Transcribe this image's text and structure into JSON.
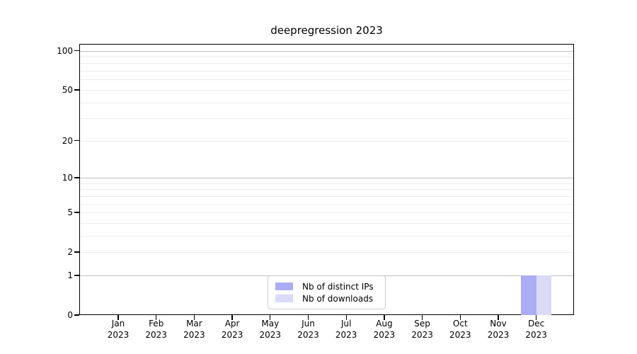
{
  "chart_data": {
    "type": "bar",
    "title": "deepregression 2023",
    "categories": [
      "Jan 2023",
      "Feb 2023",
      "Mar 2023",
      "Apr 2023",
      "May 2023",
      "Jun 2023",
      "Jul 2023",
      "Aug 2023",
      "Sep 2023",
      "Oct 2023",
      "Nov 2023",
      "Dec 2023"
    ],
    "series": [
      {
        "name": "Nb of distinct IPs",
        "color": "#acacf4",
        "values": [
          0,
          0,
          0,
          0,
          0,
          0,
          0,
          0,
          0,
          0,
          0,
          1
        ]
      },
      {
        "name": "Nb of downloads",
        "color": "#dbdbf7",
        "values": [
          0,
          0,
          0,
          0,
          0,
          0,
          0,
          0,
          0,
          0,
          0,
          1
        ]
      }
    ],
    "xlabel": "",
    "ylabel": "",
    "y_scale": "log1p",
    "ylim": [
      0,
      113
    ],
    "y_ticks": [
      0,
      1,
      2,
      5,
      10,
      20,
      50,
      100
    ],
    "y_minor_ticks": [
      3,
      4,
      6,
      7,
      8,
      9,
      30,
      40,
      60,
      70,
      80,
      90
    ],
    "y_decade_ticks": [
      1,
      10,
      100
    ],
    "grid": "horizontal",
    "legend_position": "inside-bottom-center",
    "colors": {
      "decade_grid": "#c0c0c0",
      "minor_grid": "#ececec",
      "axis": "#000000",
      "background": "#ffffff"
    }
  }
}
